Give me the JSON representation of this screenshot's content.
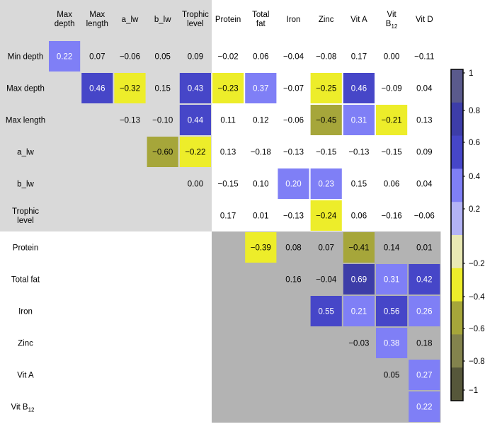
{
  "chart_data": {
    "type": "heatmap",
    "title": "",
    "column_labels": [
      {
        "lines": [
          "Max",
          "depth"
        ]
      },
      {
        "lines": [
          "Max",
          "length"
        ]
      },
      {
        "lines": [
          "a_lw"
        ]
      },
      {
        "lines": [
          "b_lw"
        ]
      },
      {
        "lines": [
          "Trophic",
          "level"
        ]
      },
      {
        "lines": [
          "Protein"
        ]
      },
      {
        "lines": [
          "Total",
          "fat"
        ]
      },
      {
        "lines": [
          "Iron"
        ]
      },
      {
        "lines": [
          "Zinc"
        ]
      },
      {
        "lines": [
          "Vit A"
        ]
      },
      {
        "lines": [
          "Vit",
          "B12"
        ],
        "sub_last": "12",
        "base_last": "B"
      },
      {
        "lines": [
          "Vit D"
        ]
      }
    ],
    "row_labels": [
      {
        "lines": [
          "Min depth"
        ]
      },
      {
        "lines": [
          "Max depth"
        ]
      },
      {
        "lines": [
          "Max length"
        ]
      },
      {
        "lines": [
          "a_lw"
        ]
      },
      {
        "lines": [
          "b_lw"
        ]
      },
      {
        "lines": [
          "Trophic",
          "level"
        ]
      },
      {
        "lines": [
          "Protein"
        ]
      },
      {
        "lines": [
          "Total fat"
        ]
      },
      {
        "lines": [
          "Iron"
        ]
      },
      {
        "lines": [
          "Zinc"
        ]
      },
      {
        "lines": [
          "Vit A"
        ]
      },
      {
        "lines": [
          "Vit B12"
        ],
        "base": "Vit B",
        "sub": "12"
      }
    ],
    "values": [
      [
        0.22,
        0.07,
        -0.06,
        0.05,
        0.09,
        -0.02,
        0.06,
        -0.04,
        -0.08,
        0.17,
        0.0,
        -0.11
      ],
      [
        null,
        0.46,
        -0.32,
        0.15,
        0.43,
        -0.23,
        0.37,
        -0.07,
        -0.25,
        0.46,
        -0.09,
        0.04
      ],
      [
        null,
        null,
        -0.13,
        -0.1,
        0.44,
        0.11,
        0.12,
        -0.06,
        -0.45,
        0.31,
        -0.21,
        0.13
      ],
      [
        null,
        null,
        null,
        -0.6,
        -0.22,
        0.13,
        -0.18,
        -0.13,
        -0.15,
        -0.13,
        -0.15,
        0.09
      ],
      [
        null,
        null,
        null,
        null,
        0.0,
        -0.15,
        0.1,
        0.2,
        0.23,
        0.15,
        0.06,
        0.04
      ],
      [
        null,
        null,
        null,
        null,
        null,
        0.17,
        0.01,
        -0.13,
        -0.24,
        0.06,
        -0.16,
        -0.06
      ],
      [
        null,
        null,
        null,
        null,
        null,
        null,
        -0.39,
        0.08,
        0.07,
        -0.41,
        0.14,
        0.01
      ],
      [
        null,
        null,
        null,
        null,
        null,
        null,
        null,
        0.16,
        -0.04,
        0.69,
        0.31,
        0.42
      ],
      [
        null,
        null,
        null,
        null,
        null,
        null,
        null,
        null,
        0.55,
        0.21,
        0.56,
        0.26
      ],
      [
        null,
        null,
        null,
        null,
        null,
        null,
        null,
        null,
        null,
        -0.03,
        0.38,
        0.18
      ],
      [
        null,
        null,
        null,
        null,
        null,
        null,
        null,
        null,
        null,
        null,
        0.05,
        0.27
      ],
      [
        null,
        null,
        null,
        null,
        null,
        null,
        null,
        null,
        null,
        null,
        null,
        0.22
      ]
    ],
    "colorbar": {
      "ticks": [
        "1",
        "0.8",
        "0.6",
        "0.4",
        "0.2",
        "−0.2",
        "−0.4",
        "−0.6",
        "−0.8",
        "−1"
      ],
      "bands": [
        {
          "from": 0.8,
          "to": 1.0,
          "color": "#5a5a8c"
        },
        {
          "from": 0.6,
          "to": 0.8,
          "color": "#3d3da8"
        },
        {
          "from": 0.4,
          "to": 0.6,
          "color": "#4646c8"
        },
        {
          "from": 0.2,
          "to": 0.4,
          "color": "#7f7ff6"
        },
        {
          "from": 0.0,
          "to": 0.2,
          "color": "#b3b3f5"
        },
        {
          "from": -0.2,
          "to": 0.0,
          "color": "#e8e8b4"
        },
        {
          "from": -0.4,
          "to": -0.2,
          "color": "#eded2a"
        },
        {
          "from": -0.6,
          "to": -0.4,
          "color": "#a6a63a"
        },
        {
          "from": -0.8,
          "to": -0.6,
          "color": "#83834d"
        },
        {
          "from": -1.0,
          "to": -0.8,
          "color": "#56573a"
        }
      ]
    },
    "background_colors": {
      "upper_left_block": "#d9d9d9",
      "lower_right_block": "#b3b3b3"
    }
  }
}
